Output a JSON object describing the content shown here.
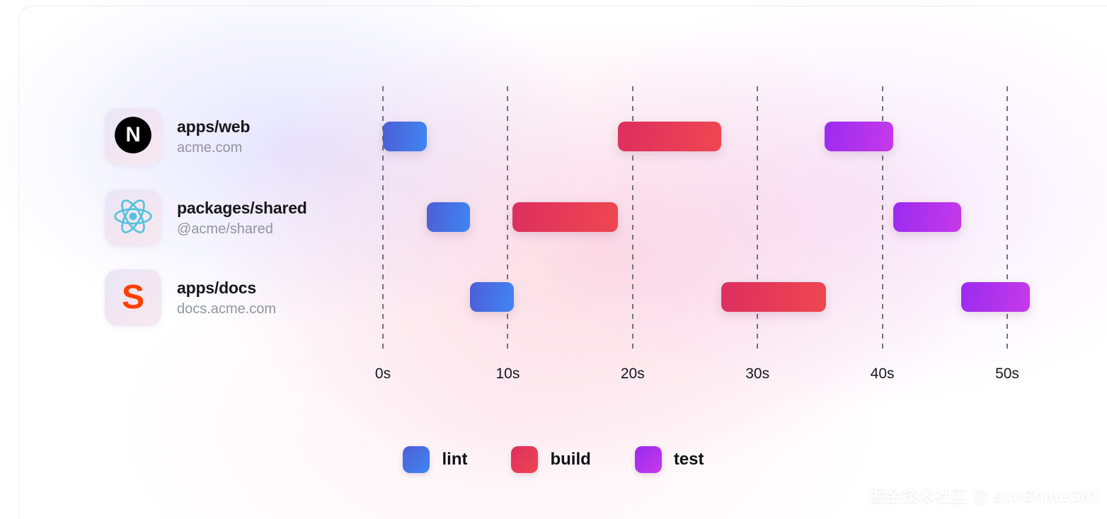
{
  "page": {
    "watermark": "掘金技术社区 @ sunShineGirl"
  },
  "projects": [
    {
      "title": "apps/web",
      "subtitle": "acme.com",
      "icon": "nextjs-logo"
    },
    {
      "title": "packages/shared",
      "subtitle": "@acme/shared",
      "icon": "react-logo"
    },
    {
      "title": "apps/docs",
      "subtitle": "docs.acme.com",
      "icon": "svelte-logo"
    }
  ],
  "legend": {
    "items": [
      {
        "label": "lint",
        "color_from": "#4d5ed6",
        "color_to": "#3f86f2"
      },
      {
        "label": "build",
        "color_from": "#dc2f60",
        "color_to": "#ee4750"
      },
      {
        "label": "test",
        "color_from": "#9a2bf0",
        "color_to": "#c63ae8"
      }
    ]
  },
  "axis": {
    "tick_labels": [
      "0s",
      "10s",
      "20s",
      "30s",
      "40s",
      "50s"
    ],
    "tick_seconds": [
      0,
      10,
      20,
      30,
      40,
      50
    ]
  },
  "chart_data": {
    "type": "bar",
    "subtype": "gantt-timeline",
    "title": "",
    "x_unit": "seconds",
    "x_range": [
      0,
      52
    ],
    "grid": "dashed-vertical",
    "legend_position": "bottom",
    "rows": [
      "apps/web",
      "packages/shared",
      "apps/docs"
    ],
    "tasks": [
      {
        "row": "apps/web",
        "name": "lint",
        "start": 0,
        "end": 3.5
      },
      {
        "row": "packages/shared",
        "name": "lint",
        "start": 3.5,
        "end": 7
      },
      {
        "row": "apps/docs",
        "name": "lint",
        "start": 7,
        "end": 10.5
      },
      {
        "row": "packages/shared",
        "name": "build",
        "start": 10.4,
        "end": 18.8
      },
      {
        "row": "apps/web",
        "name": "build",
        "start": 18.8,
        "end": 27.1
      },
      {
        "row": "apps/docs",
        "name": "build",
        "start": 27.1,
        "end": 35.5
      },
      {
        "row": "apps/web",
        "name": "test",
        "start": 35.4,
        "end": 40.9
      },
      {
        "row": "packages/shared",
        "name": "test",
        "start": 40.9,
        "end": 46.3
      },
      {
        "row": "apps/docs",
        "name": "test",
        "start": 46.3,
        "end": 51.8
      }
    ]
  }
}
